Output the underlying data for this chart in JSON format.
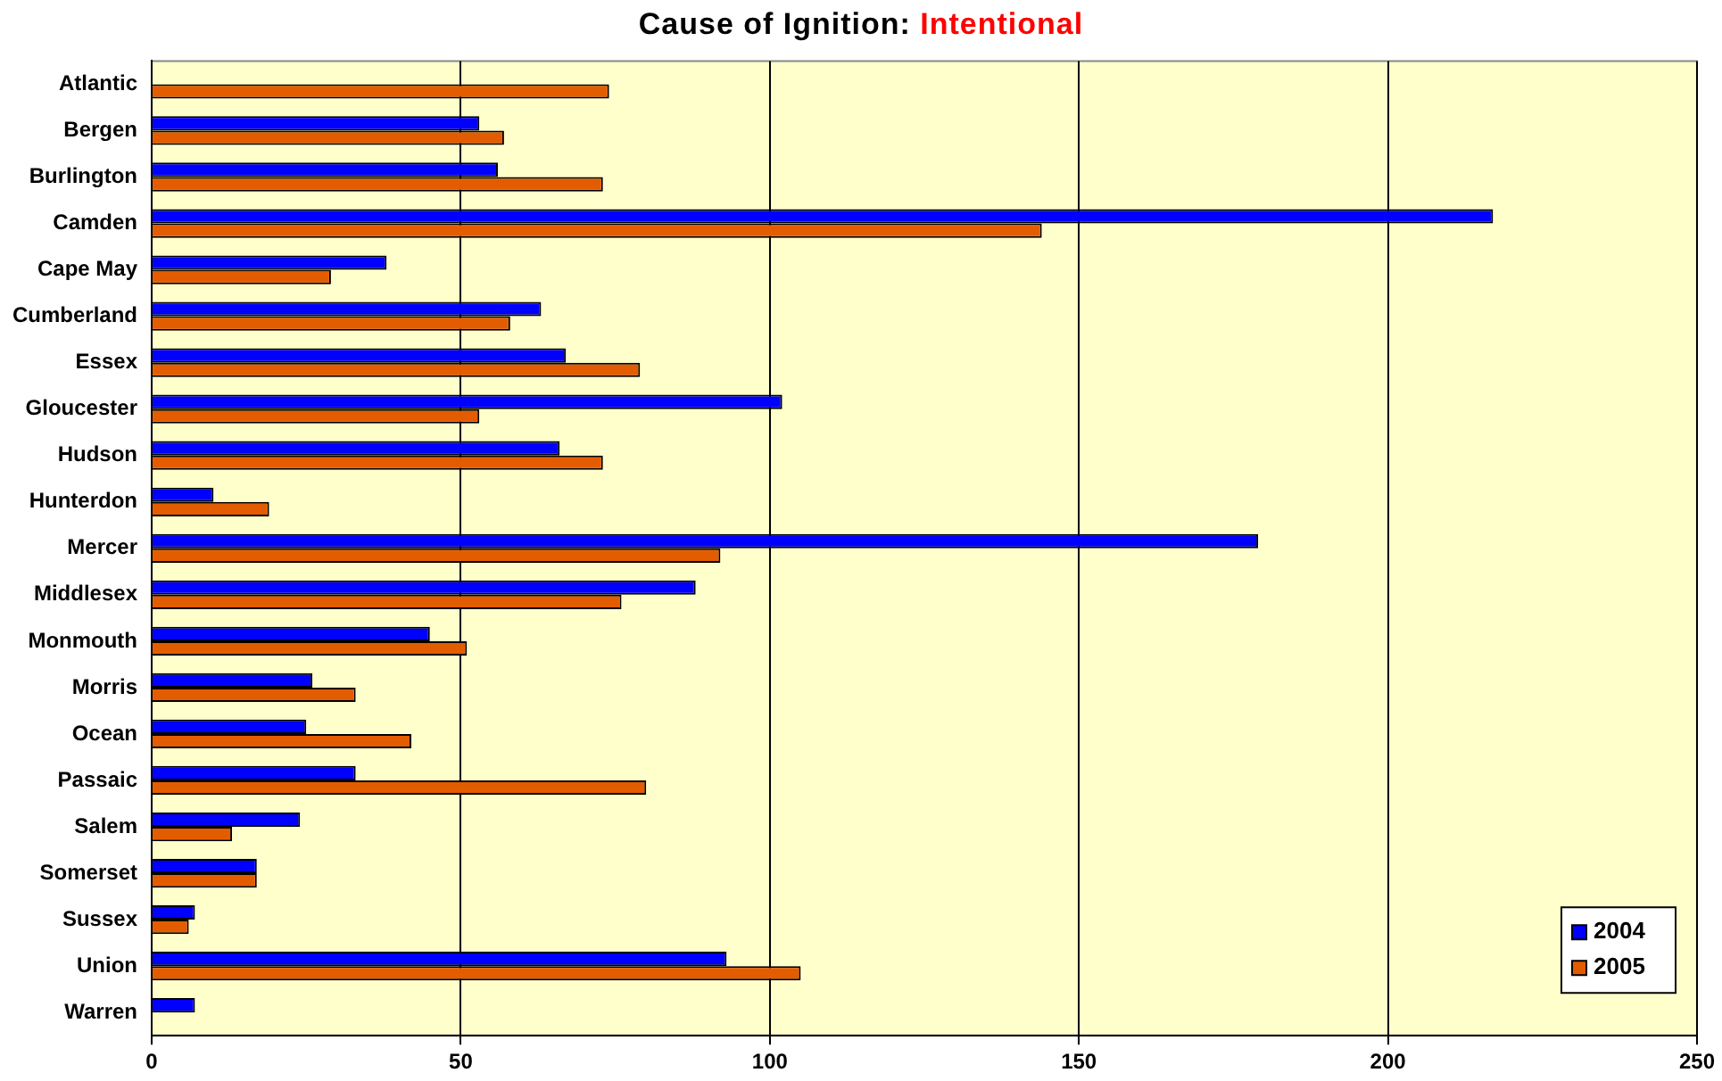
{
  "chart_data": {
    "type": "bar",
    "orientation": "horizontal",
    "title": "Cause of Ignition:",
    "subtitle": "Intentional",
    "categories": [
      "Atlantic",
      "Bergen",
      "Burlington",
      "Camden",
      "Cape May",
      "Cumberland",
      "Essex",
      "Gloucester",
      "Hudson",
      "Hunterdon",
      "Mercer",
      "Middlesex",
      "Monmouth",
      "Morris",
      "Ocean",
      "Passaic",
      "Salem",
      "Somerset",
      "Sussex",
      "Union",
      "Warren"
    ],
    "series": [
      {
        "name": "2004",
        "color": "#0000ff",
        "values": [
          0,
          53,
          56,
          217,
          38,
          63,
          67,
          102,
          66,
          10,
          179,
          88,
          45,
          26,
          25,
          33,
          24,
          17,
          7,
          93,
          7
        ]
      },
      {
        "name": "2005",
        "color": "#e35d00",
        "values": [
          74,
          57,
          73,
          144,
          29,
          58,
          79,
          53,
          73,
          19,
          92,
          76,
          51,
          33,
          42,
          80,
          13,
          17,
          6,
          105,
          0
        ]
      }
    ],
    "xlim": [
      0,
      250
    ],
    "xticks": [
      0,
      50,
      100,
      150,
      200,
      250
    ],
    "grid": "x",
    "legend": "bottom right"
  }
}
